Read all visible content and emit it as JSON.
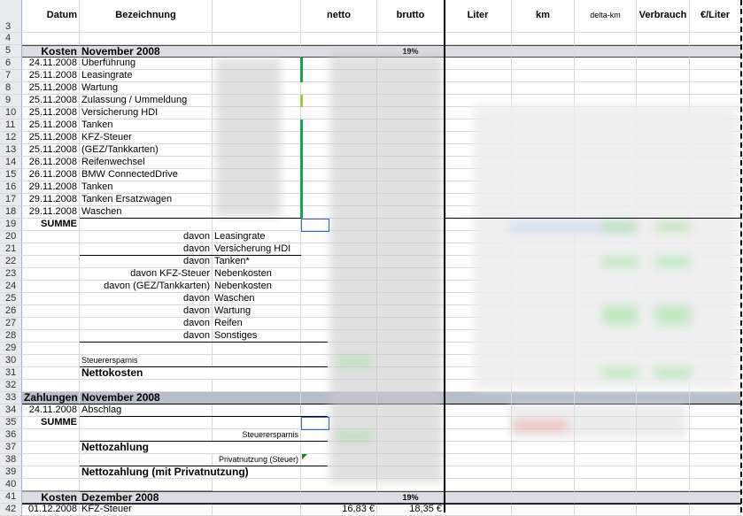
{
  "header": {
    "datum": "Datum",
    "bezeichnung": "Bezeichnung",
    "netto": "netto",
    "brutto": "brutto",
    "liter": "Liter",
    "km": "km",
    "delta_km": "delta-km",
    "verbrauch": "Verbrauch",
    "eur_liter": "€/Liter"
  },
  "rows": [
    {
      "n": "4"
    },
    {
      "n": "5",
      "style": "section",
      "a": "Kosten",
      "b": "November 2008",
      "e": "19%"
    },
    {
      "n": "6",
      "a": "24.11.2008",
      "b": "Überführung"
    },
    {
      "n": "7",
      "a": "25.11.2008",
      "b": "Leasingrate"
    },
    {
      "n": "8",
      "a": "25.11.2008",
      "b": "Wartung"
    },
    {
      "n": "9",
      "a": "25.11.2008",
      "b": "Zulassung / Ummeldung"
    },
    {
      "n": "10",
      "a": "25.11.2008",
      "b": "Versicherung HDI"
    },
    {
      "n": "11",
      "a": "25.11.2008",
      "b": "Tanken"
    },
    {
      "n": "12",
      "a": "25.11.2008",
      "b": "KFZ-Steuer"
    },
    {
      "n": "13",
      "a": "25.11.2008",
      "b": "(GEZ/Tankkarten)"
    },
    {
      "n": "14",
      "a": "26.11.2008",
      "b": "Reifenwechsel"
    },
    {
      "n": "15",
      "a": "26.11.2008",
      "b": "BMW ConnectedDrive"
    },
    {
      "n": "16",
      "a": "29.11.2008",
      "b": "Tanken"
    },
    {
      "n": "17",
      "a": "29.11.2008",
      "b": "Tanken Ersatzwagen"
    },
    {
      "n": "18",
      "a": "29.11.2008",
      "b": "Waschen"
    },
    {
      "n": "19",
      "style": "summe",
      "a": "SUMME"
    },
    {
      "n": "20",
      "style": "davon",
      "b": "davon",
      "c": "Leasingrate"
    },
    {
      "n": "21",
      "style": "davon",
      "b": "davon",
      "c": "Versicherung HDI"
    },
    {
      "n": "22",
      "style": "davon",
      "b": "davon",
      "c": "Tanken*"
    },
    {
      "n": "23",
      "style": "davon",
      "b": "davon KFZ-Steuer",
      "c": "Nebenkosten"
    },
    {
      "n": "24",
      "style": "davon",
      "b": "davon (GEZ/Tankkarten)",
      "c": "Nebenkosten"
    },
    {
      "n": "25",
      "style": "davon",
      "b": "davon",
      "c": "Waschen"
    },
    {
      "n": "26",
      "style": "davon",
      "b": "davon",
      "c": "Wartung"
    },
    {
      "n": "27",
      "style": "davon",
      "b": "davon",
      "c": "Reifen"
    },
    {
      "n": "28",
      "style": "davon",
      "b": "davon",
      "c": "Sonstiges"
    },
    {
      "n": "29"
    },
    {
      "n": "30",
      "style": "small",
      "b": "Steuerersparnis"
    },
    {
      "n": "31",
      "style": "big",
      "b": "Nettokosten"
    },
    {
      "n": "32"
    },
    {
      "n": "33",
      "style": "section2",
      "a": "Zahlungen",
      "b": "November 2008"
    },
    {
      "n": "34",
      "a": "24.11.2008",
      "b": "Abschlag"
    },
    {
      "n": "35",
      "style": "summe",
      "a": "SUMME"
    },
    {
      "n": "36",
      "style": "cright",
      "c": "Steuerersparnis"
    },
    {
      "n": "37",
      "style": "big",
      "b": "Nettozahlung"
    },
    {
      "n": "38",
      "style": "cright",
      "c": "Privatnutzung (Steuer)"
    },
    {
      "n": "39",
      "style": "big",
      "b": "Nettozahlung (mit Privatnutzung)"
    },
    {
      "n": "40"
    },
    {
      "n": "41",
      "style": "section",
      "a": "Kosten",
      "b": "Dezember 2008",
      "e": "19%"
    },
    {
      "n": "42",
      "a": "01.12.2008",
      "b": "KFZ-Steuer",
      "d": "16,83 €",
      "e": "18,35 €"
    }
  ],
  "colors": {
    "accent_green": "#0fa84e",
    "light_green": "#92d050",
    "selection_blue": "#2f64d8",
    "section_gray": "#dcdde3",
    "section_dark": "#b9bdc9"
  }
}
